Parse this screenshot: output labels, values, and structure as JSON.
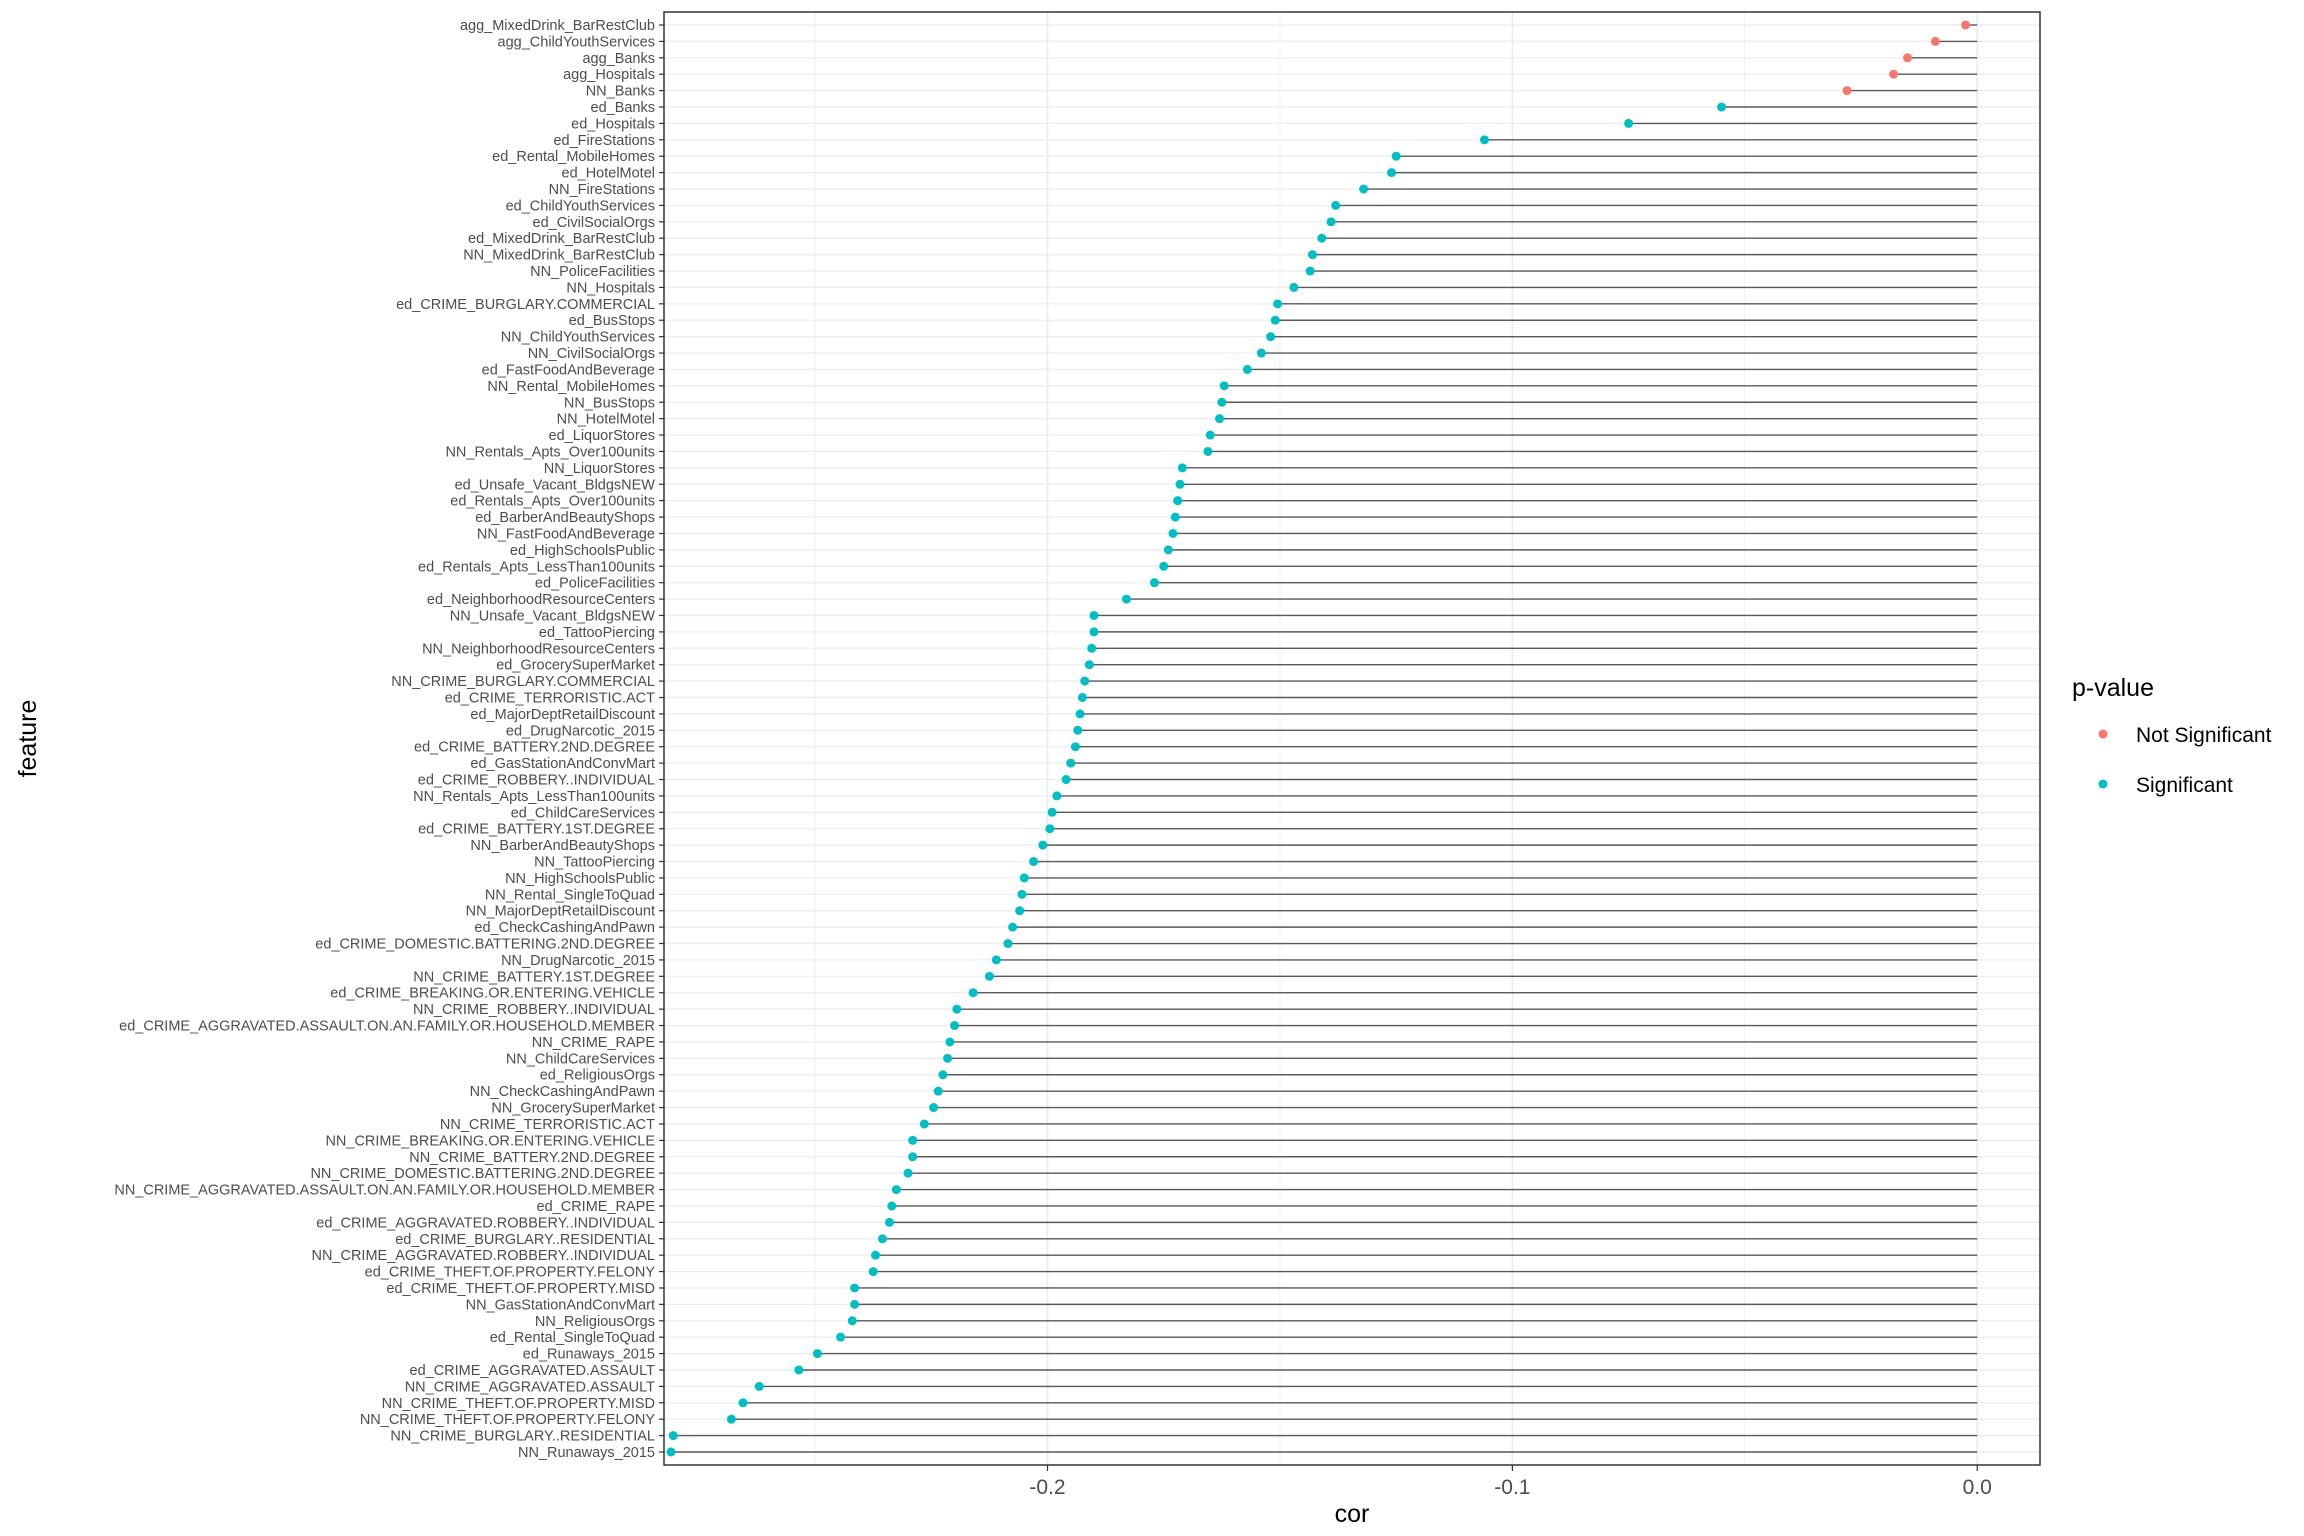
{
  "chart_data": {
    "type": "lollipop",
    "xlabel": "cor",
    "ylabel": "feature",
    "xlim": [
      -0.2825,
      0.0135
    ],
    "x_ticks": [
      -0.2,
      -0.1,
      0.0
    ],
    "x_tick_labels": [
      "-0.2",
      "-0.1",
      "0.0"
    ],
    "grid": true,
    "legend": {
      "title": "p-value",
      "position": "right",
      "entries": [
        {
          "label": "Not Significant",
          "color": "#F8766D"
        },
        {
          "label": "Significant",
          "color": "#00BFC4"
        }
      ]
    },
    "colors": {
      "Not Significant": "#F8766D",
      "Significant": "#00BFC4",
      "segment": "#595959"
    },
    "points": [
      {
        "feature": "agg_MixedDrink_BarRestClub",
        "cor": -0.0025,
        "group": "Not Significant"
      },
      {
        "feature": "agg_ChildYouthServices",
        "cor": -0.009,
        "group": "Not Significant"
      },
      {
        "feature": "agg_Banks",
        "cor": -0.015,
        "group": "Not Significant"
      },
      {
        "feature": "agg_Hospitals",
        "cor": -0.018,
        "group": "Not Significant"
      },
      {
        "feature": "NN_Banks",
        "cor": -0.028,
        "group": "Not Significant"
      },
      {
        "feature": "ed_Banks",
        "cor": -0.055,
        "group": "Significant"
      },
      {
        "feature": "ed_Hospitals",
        "cor": -0.075,
        "group": "Significant"
      },
      {
        "feature": "ed_FireStations",
        "cor": -0.106,
        "group": "Significant"
      },
      {
        "feature": "ed_Rental_MobileHomes",
        "cor": -0.125,
        "group": "Significant"
      },
      {
        "feature": "ed_HotelMotel",
        "cor": -0.126,
        "group": "Significant"
      },
      {
        "feature": "NN_FireStations",
        "cor": -0.132,
        "group": "Significant"
      },
      {
        "feature": "ed_ChildYouthServices",
        "cor": -0.138,
        "group": "Significant"
      },
      {
        "feature": "ed_CivilSocialOrgs",
        "cor": -0.139,
        "group": "Significant"
      },
      {
        "feature": "ed_MixedDrink_BarRestClub",
        "cor": -0.141,
        "group": "Significant"
      },
      {
        "feature": "NN_MixedDrink_BarRestClub",
        "cor": -0.143,
        "group": "Significant"
      },
      {
        "feature": "NN_PoliceFacilities",
        "cor": -0.1435,
        "group": "Significant"
      },
      {
        "feature": "NN_Hospitals",
        "cor": -0.147,
        "group": "Significant"
      },
      {
        "feature": "ed_CRIME_BURGLARY.COMMERCIAL",
        "cor": -0.1505,
        "group": "Significant"
      },
      {
        "feature": "ed_BusStops",
        "cor": -0.151,
        "group": "Significant"
      },
      {
        "feature": "NN_ChildYouthServices",
        "cor": -0.152,
        "group": "Significant"
      },
      {
        "feature": "NN_CivilSocialOrgs",
        "cor": -0.154,
        "group": "Significant"
      },
      {
        "feature": "ed_FastFoodAndBeverage",
        "cor": -0.157,
        "group": "Significant"
      },
      {
        "feature": "NN_Rental_MobileHomes",
        "cor": -0.162,
        "group": "Significant"
      },
      {
        "feature": "NN_BusStops",
        "cor": -0.1625,
        "group": "Significant"
      },
      {
        "feature": "NN_HotelMotel",
        "cor": -0.163,
        "group": "Significant"
      },
      {
        "feature": "ed_LiquorStores",
        "cor": -0.165,
        "group": "Significant"
      },
      {
        "feature": "NN_Rentals_Apts_Over100units",
        "cor": -0.1655,
        "group": "Significant"
      },
      {
        "feature": "NN_LiquorStores",
        "cor": -0.171,
        "group": "Significant"
      },
      {
        "feature": "ed_Unsafe_Vacant_BldgsNEW",
        "cor": -0.1715,
        "group": "Significant"
      },
      {
        "feature": "ed_Rentals_Apts_Over100units",
        "cor": -0.172,
        "group": "Significant"
      },
      {
        "feature": "ed_BarberAndBeautyShops",
        "cor": -0.1725,
        "group": "Significant"
      },
      {
        "feature": "NN_FastFoodAndBeverage",
        "cor": -0.173,
        "group": "Significant"
      },
      {
        "feature": "ed_HighSchoolsPublic",
        "cor": -0.174,
        "group": "Significant"
      },
      {
        "feature": "ed_Rentals_Apts_LessThan100units",
        "cor": -0.175,
        "group": "Significant"
      },
      {
        "feature": "ed_PoliceFacilities",
        "cor": -0.177,
        "group": "Significant"
      },
      {
        "feature": "ed_NeighborhoodResourceCenters",
        "cor": -0.183,
        "group": "Significant"
      },
      {
        "feature": "NN_Unsafe_Vacant_BldgsNEW",
        "cor": -0.19,
        "group": "Significant"
      },
      {
        "feature": "ed_TattooPiercing",
        "cor": -0.19,
        "group": "Significant"
      },
      {
        "feature": "NN_NeighborhoodResourceCenters",
        "cor": -0.1905,
        "group": "Significant"
      },
      {
        "feature": "ed_GrocerySuperMarket",
        "cor": -0.191,
        "group": "Significant"
      },
      {
        "feature": "NN_CRIME_BURGLARY.COMMERCIAL",
        "cor": -0.192,
        "group": "Significant"
      },
      {
        "feature": "ed_CRIME_TERRORISTIC.ACT",
        "cor": -0.1925,
        "group": "Significant"
      },
      {
        "feature": "ed_MajorDeptRetailDiscount",
        "cor": -0.193,
        "group": "Significant"
      },
      {
        "feature": "ed_DrugNarcotic_2015",
        "cor": -0.1935,
        "group": "Significant"
      },
      {
        "feature": "ed_CRIME_BATTERY.2ND.DEGREE",
        "cor": -0.194,
        "group": "Significant"
      },
      {
        "feature": "ed_GasStationAndConvMart",
        "cor": -0.195,
        "group": "Significant"
      },
      {
        "feature": "ed_CRIME_ROBBERY..INDIVIDUAL",
        "cor": -0.196,
        "group": "Significant"
      },
      {
        "feature": "NN_Rentals_Apts_LessThan100units",
        "cor": -0.198,
        "group": "Significant"
      },
      {
        "feature": "ed_ChildCareServices",
        "cor": -0.199,
        "group": "Significant"
      },
      {
        "feature": "ed_CRIME_BATTERY.1ST.DEGREE",
        "cor": -0.1995,
        "group": "Significant"
      },
      {
        "feature": "NN_BarberAndBeautyShops",
        "cor": -0.201,
        "group": "Significant"
      },
      {
        "feature": "NN_TattooPiercing",
        "cor": -0.203,
        "group": "Significant"
      },
      {
        "feature": "NN_HighSchoolsPublic",
        "cor": -0.205,
        "group": "Significant"
      },
      {
        "feature": "NN_Rental_SingleToQuad",
        "cor": -0.2055,
        "group": "Significant"
      },
      {
        "feature": "NN_MajorDeptRetailDiscount",
        "cor": -0.206,
        "group": "Significant"
      },
      {
        "feature": "ed_CheckCashingAndPawn",
        "cor": -0.2075,
        "group": "Significant"
      },
      {
        "feature": "ed_CRIME_DOMESTIC.BATTERING.2ND.DEGREE",
        "cor": -0.2085,
        "group": "Significant"
      },
      {
        "feature": "NN_DrugNarcotic_2015",
        "cor": -0.211,
        "group": "Significant"
      },
      {
        "feature": "NN_CRIME_BATTERY.1ST.DEGREE",
        "cor": -0.2125,
        "group": "Significant"
      },
      {
        "feature": "ed_CRIME_BREAKING.OR.ENTERING.VEHICLE",
        "cor": -0.216,
        "group": "Significant"
      },
      {
        "feature": "NN_CRIME_ROBBERY..INDIVIDUAL",
        "cor": -0.2195,
        "group": "Significant"
      },
      {
        "feature": "ed_CRIME_AGGRAVATED.ASSAULT.ON.AN.FAMILY.OR.HOUSEHOLD.MEMBER",
        "cor": -0.22,
        "group": "Significant"
      },
      {
        "feature": "NN_CRIME_RAPE",
        "cor": -0.221,
        "group": "Significant"
      },
      {
        "feature": "NN_ChildCareServices",
        "cor": -0.2215,
        "group": "Significant"
      },
      {
        "feature": "ed_ReligiousOrgs",
        "cor": -0.2225,
        "group": "Significant"
      },
      {
        "feature": "NN_CheckCashingAndPawn",
        "cor": -0.2235,
        "group": "Significant"
      },
      {
        "feature": "NN_GrocerySuperMarket",
        "cor": -0.2245,
        "group": "Significant"
      },
      {
        "feature": "NN_CRIME_TERRORISTIC.ACT",
        "cor": -0.2265,
        "group": "Significant"
      },
      {
        "feature": "NN_CRIME_BREAKING.OR.ENTERING.VEHICLE",
        "cor": -0.229,
        "group": "Significant"
      },
      {
        "feature": "NN_CRIME_BATTERY.2ND.DEGREE",
        "cor": -0.229,
        "group": "Significant"
      },
      {
        "feature": "NN_CRIME_DOMESTIC.BATTERING.2ND.DEGREE",
        "cor": -0.23,
        "group": "Significant"
      },
      {
        "feature": "NN_CRIME_AGGRAVATED.ASSAULT.ON.AN.FAMILY.OR.HOUSEHOLD.MEMBER",
        "cor": -0.2325,
        "group": "Significant"
      },
      {
        "feature": "ed_CRIME_RAPE",
        "cor": -0.2335,
        "group": "Significant"
      },
      {
        "feature": "ed_CRIME_AGGRAVATED.ROBBERY..INDIVIDUAL",
        "cor": -0.234,
        "group": "Significant"
      },
      {
        "feature": "ed_CRIME_BURGLARY..RESIDENTIAL",
        "cor": -0.2355,
        "group": "Significant"
      },
      {
        "feature": "NN_CRIME_AGGRAVATED.ROBBERY..INDIVIDUAL",
        "cor": -0.237,
        "group": "Significant"
      },
      {
        "feature": "ed_CRIME_THEFT.OF.PROPERTY.FELONY",
        "cor": -0.2375,
        "group": "Significant"
      },
      {
        "feature": "ed_CRIME_THEFT.OF.PROPERTY.MISD",
        "cor": -0.2415,
        "group": "Significant"
      },
      {
        "feature": "NN_GasStationAndConvMart",
        "cor": -0.2415,
        "group": "Significant"
      },
      {
        "feature": "NN_ReligiousOrgs",
        "cor": -0.242,
        "group": "Significant"
      },
      {
        "feature": "ed_Rental_SingleToQuad",
        "cor": -0.2445,
        "group": "Significant"
      },
      {
        "feature": "ed_Runaways_2015",
        "cor": -0.2495,
        "group": "Significant"
      },
      {
        "feature": "ed_CRIME_AGGRAVATED.ASSAULT",
        "cor": -0.2535,
        "group": "Significant"
      },
      {
        "feature": "NN_CRIME_AGGRAVATED.ASSAULT",
        "cor": -0.262,
        "group": "Significant"
      },
      {
        "feature": "NN_CRIME_THEFT.OF.PROPERTY.MISD",
        "cor": -0.2655,
        "group": "Significant"
      },
      {
        "feature": "NN_CRIME_THEFT.OF.PROPERTY.FELONY",
        "cor": -0.268,
        "group": "Significant"
      },
      {
        "feature": "NN_CRIME_BURGLARY..RESIDENTIAL",
        "cor": -0.2805,
        "group": "Significant"
      },
      {
        "feature": "NN_Runaways_2015",
        "cor": -0.281,
        "group": "Significant"
      }
    ]
  }
}
